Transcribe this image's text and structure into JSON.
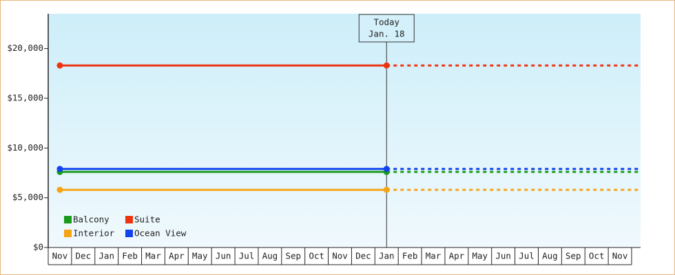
{
  "chart_data": {
    "type": "line",
    "categories": [
      "Nov",
      "Dec",
      "Jan",
      "Feb",
      "Mar",
      "Apr",
      "May",
      "Jun",
      "Jul",
      "Aug",
      "Sep",
      "Oct",
      "Nov",
      "Dec",
      "Jan",
      "Feb",
      "Mar",
      "Apr",
      "May",
      "Jun",
      "Jul",
      "Aug",
      "Sep",
      "Oct",
      "Nov"
    ],
    "series": [
      {
        "name": "Balcony",
        "color": "#1a9a1a",
        "values": [
          7600,
          7600,
          7600,
          7600,
          7600,
          7600,
          7600,
          7600,
          7600,
          7600,
          7600,
          7600,
          7600,
          7600,
          7600,
          null,
          null,
          null,
          null,
          null,
          null,
          null,
          null,
          null,
          null
        ]
      },
      {
        "name": "Suite",
        "color": "#ee3311",
        "values": [
          18300,
          18300,
          18300,
          18300,
          18300,
          18300,
          18300,
          18300,
          18300,
          18300,
          18300,
          18300,
          18300,
          18300,
          18300,
          null,
          null,
          null,
          null,
          null,
          null,
          null,
          null,
          null,
          null
        ]
      },
      {
        "name": "Interior",
        "color": "#f5a416",
        "values": [
          5800,
          5800,
          5800,
          5800,
          5800,
          5800,
          5800,
          5800,
          5800,
          5800,
          5800,
          5800,
          5800,
          5800,
          5800,
          null,
          null,
          null,
          null,
          null,
          null,
          null,
          null,
          null,
          null
        ]
      },
      {
        "name": "Ocean View",
        "color": "#1144ee",
        "values": [
          7900,
          7900,
          7900,
          7900,
          7900,
          7900,
          7900,
          7900,
          7900,
          7900,
          7900,
          7900,
          7900,
          7900,
          7900,
          null,
          null,
          null,
          null,
          null,
          null,
          null,
          null,
          null,
          null
        ]
      }
    ],
    "annotation": [
      "Today",
      "Jan. 18"
    ],
    "ylim": [
      0,
      23500
    ],
    "yticks": [
      {
        "value": 0,
        "label": "$0"
      },
      {
        "value": 5000,
        "label": "$5,000"
      },
      {
        "value": 10000,
        "label": "$10,000"
      },
      {
        "value": 15000,
        "label": "$15,000"
      },
      {
        "value": 20000,
        "label": "$20,000"
      }
    ],
    "legend": "lower left"
  }
}
